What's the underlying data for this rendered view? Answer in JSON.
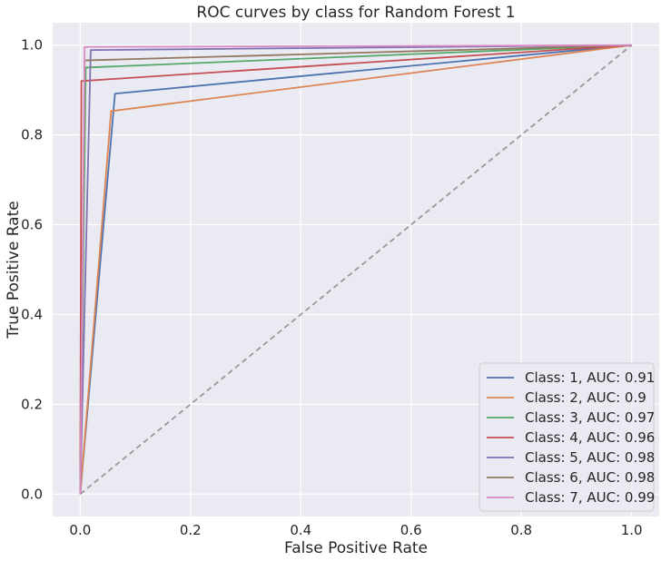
{
  "chart_data": {
    "type": "line",
    "title": "ROC curves by class for Random Forest 1",
    "xlabel": "False Positive Rate",
    "ylabel": "True Positive Rate",
    "xlim": [
      -0.05,
      1.05
    ],
    "ylim": [
      -0.05,
      1.05
    ],
    "xticks": [
      "0.0",
      "0.2",
      "0.4",
      "0.6",
      "0.8",
      "1.0"
    ],
    "yticks": [
      "0.0",
      "0.2",
      "0.4",
      "0.6",
      "0.8",
      "1.0"
    ],
    "grid": true,
    "legend_position": "bottom-right",
    "series": [
      {
        "name": "Class: 1, AUC: 0.91",
        "color": "#4c72b0",
        "x": [
          0,
          0.063,
          1
        ],
        "y": [
          0,
          0.892,
          1
        ]
      },
      {
        "name": "Class: 2, AUC: 0.9",
        "color": "#dd8452",
        "x": [
          0,
          0.056,
          1
        ],
        "y": [
          0,
          0.853,
          1
        ]
      },
      {
        "name": "Class: 3, AUC: 0.97",
        "color": "#55a868",
        "x": [
          0,
          0.01,
          1
        ],
        "y": [
          0,
          0.95,
          1
        ]
      },
      {
        "name": "Class: 4, AUC: 0.96",
        "color": "#c44e52",
        "x": [
          0,
          0.002,
          1
        ],
        "y": [
          0,
          0.92,
          1
        ]
      },
      {
        "name": "Class: 5, AUC: 0.98",
        "color": "#8172b3",
        "x": [
          0,
          0.019,
          1
        ],
        "y": [
          0,
          0.989,
          1
        ]
      },
      {
        "name": "Class: 6, AUC: 0.98",
        "color": "#937860",
        "x": [
          0,
          0.008,
          1
        ],
        "y": [
          0,
          0.966,
          1
        ]
      },
      {
        "name": "Class: 7, AUC: 0.99",
        "color": "#da8bc3",
        "x": [
          0,
          0.008,
          1
        ],
        "y": [
          0,
          0.996,
          1
        ]
      }
    ],
    "reference_line": {
      "x": [
        0,
        1
      ],
      "y": [
        0,
        1
      ],
      "color": "#999999",
      "style": "dashed"
    }
  }
}
